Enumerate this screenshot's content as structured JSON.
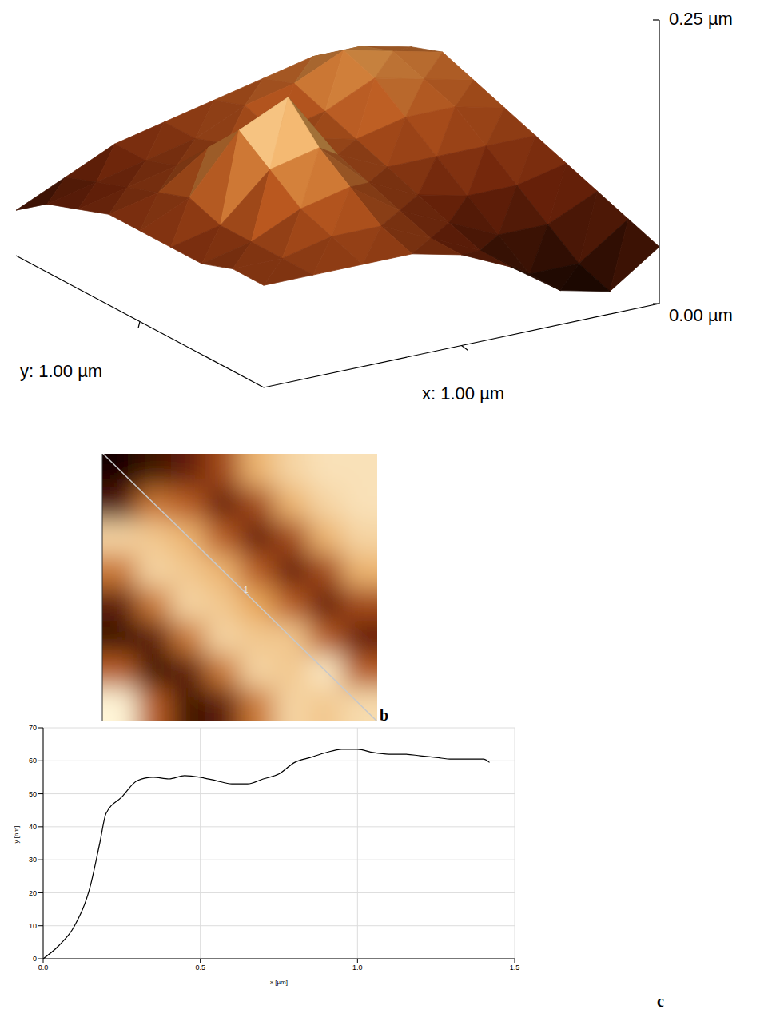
{
  "surface_3d": {
    "heights_um": [
      [
        0.09,
        0.09,
        0.09,
        0.09,
        0.08,
        0.06,
        0.03,
        0.02,
        0.05
      ],
      [
        0.09,
        0.09,
        0.1,
        0.1,
        0.08,
        0.06,
        0.03,
        0.03,
        0.06
      ],
      [
        0.08,
        0.09,
        0.11,
        0.12,
        0.09,
        0.07,
        0.05,
        0.05,
        0.07
      ],
      [
        0.08,
        0.09,
        0.13,
        0.14,
        0.1,
        0.08,
        0.07,
        0.07,
        0.08
      ],
      [
        0.08,
        0.1,
        0.15,
        0.17,
        0.11,
        0.09,
        0.09,
        0.09,
        0.09
      ],
      [
        0.08,
        0.09,
        0.12,
        0.13,
        0.11,
        0.1,
        0.11,
        0.11,
        0.1
      ],
      [
        0.07,
        0.08,
        0.09,
        0.1,
        0.1,
        0.11,
        0.13,
        0.12,
        0.11
      ],
      [
        0.06,
        0.07,
        0.08,
        0.09,
        0.11,
        0.12,
        0.14,
        0.13,
        0.12
      ],
      [
        0.04,
        0.06,
        0.08,
        0.09,
        0.1,
        0.11,
        0.12,
        0.12,
        0.11
      ]
    ],
    "zlim": [
      0,
      0.25
    ],
    "zticks": [
      {
        "value": 0,
        "label": "0.00 µm"
      },
      {
        "value": 0.25,
        "label": "0.25 µm"
      }
    ],
    "x_label": "x: 1.00 µm",
    "y_label": "y: 1.00 µm"
  },
  "height_map": {
    "heights_nm": [
      [
        0,
        10,
        20,
        35,
        55,
        60,
        62,
        62
      ],
      [
        15,
        45,
        40,
        20,
        35,
        55,
        60,
        62
      ],
      [
        60,
        58,
        55,
        40,
        20,
        35,
        55,
        60
      ],
      [
        45,
        60,
        58,
        55,
        40,
        20,
        35,
        55
      ],
      [
        18,
        45,
        60,
        58,
        53,
        40,
        20,
        35
      ],
      [
        10,
        18,
        45,
        60,
        58,
        58,
        40,
        20
      ],
      [
        40,
        10,
        18,
        45,
        60,
        58,
        63,
        40
      ],
      [
        65,
        40,
        10,
        18,
        45,
        60,
        58,
        61
      ]
    ],
    "line_label": "1"
  },
  "panel_letters": [
    "b",
    "c"
  ],
  "chart_data": {
    "type": "line",
    "x": [
      0,
      0.05,
      0.1,
      0.15,
      0.18,
      0.2,
      0.25,
      0.3,
      0.35,
      0.4,
      0.45,
      0.5,
      0.55,
      0.6,
      0.65,
      0.7,
      0.75,
      0.8,
      0.85,
      0.9,
      0.95,
      1.0,
      1.05,
      1.1,
      1.15,
      1.2,
      1.25,
      1.3,
      1.35,
      1.4,
      1.42
    ],
    "values": [
      0,
      4,
      10,
      22,
      35,
      44,
      49,
      54,
      55,
      54.5,
      55.5,
      55,
      54,
      53,
      53,
      54.5,
      56,
      59.5,
      61,
      62.5,
      63.5,
      63.5,
      62.5,
      62,
      62,
      61.5,
      61,
      60.5,
      60.5,
      60.5,
      59.5
    ],
    "color": "#000000",
    "xlim": [
      0,
      1.5
    ],
    "xticks": [
      {
        "value": 0,
        "label": "0.0"
      },
      0.5,
      {
        "value": 1,
        "label": "1.0"
      },
      1.5
    ],
    "ylim": [
      0,
      70
    ],
    "yticks": [
      0,
      10,
      20,
      30,
      40,
      50,
      60,
      70
    ],
    "x_label": "x [µm]",
    "y_label": "y [nm]",
    "grid": true
  }
}
